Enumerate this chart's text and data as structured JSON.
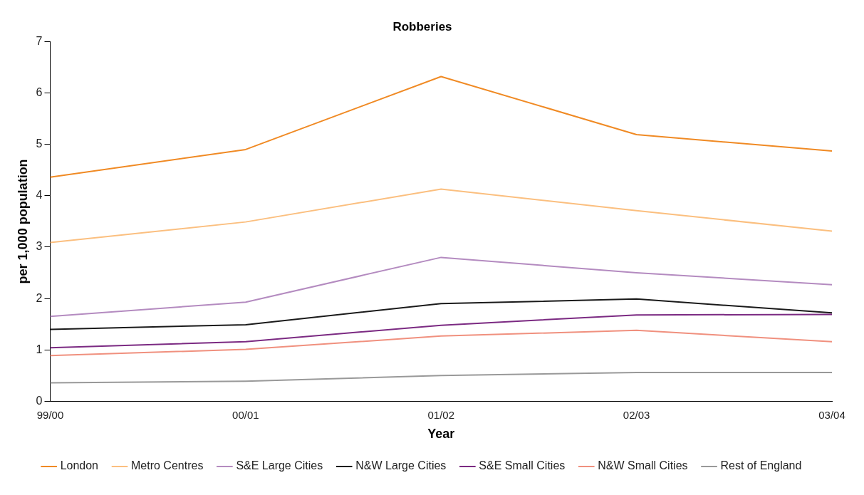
{
  "chart_data": {
    "type": "line",
    "title": "Robberies",
    "xlabel": "Year",
    "ylabel": "per 1,000 population",
    "categories": [
      "99/00",
      "00/01",
      "01/02",
      "02/03",
      "03/04"
    ],
    "ylim": [
      0,
      7
    ],
    "yticks": [
      0,
      1,
      2,
      3,
      4,
      5,
      6,
      7
    ],
    "grid": false,
    "legend": "bottom",
    "marker": "none",
    "line_style": "solid",
    "series": [
      {
        "name": "London",
        "color": "#f08a24",
        "values": [
          4.36,
          4.9,
          6.32,
          5.19,
          4.87
        ]
      },
      {
        "name": "Metro Centres",
        "color": "#fbbf7f",
        "values": [
          3.09,
          3.49,
          4.13,
          3.71,
          3.31
        ]
      },
      {
        "name": "S&E Large Cities",
        "color": "#b48bc0",
        "values": [
          1.65,
          1.93,
          2.8,
          2.5,
          2.27
        ]
      },
      {
        "name": "N&W Large Cities",
        "color": "#1a1a1a",
        "values": [
          1.4,
          1.49,
          1.9,
          1.99,
          1.72
        ]
      },
      {
        "name": "S&E Small Cities",
        "color": "#7b2a82",
        "values": [
          1.04,
          1.16,
          1.48,
          1.68,
          1.69
        ]
      },
      {
        "name": "N&W Small Cities",
        "color": "#f0907e",
        "values": [
          0.89,
          1.01,
          1.27,
          1.38,
          1.16
        ]
      },
      {
        "name": "Rest of England",
        "color": "#999999",
        "values": [
          0.36,
          0.39,
          0.5,
          0.56,
          0.56
        ]
      }
    ]
  }
}
